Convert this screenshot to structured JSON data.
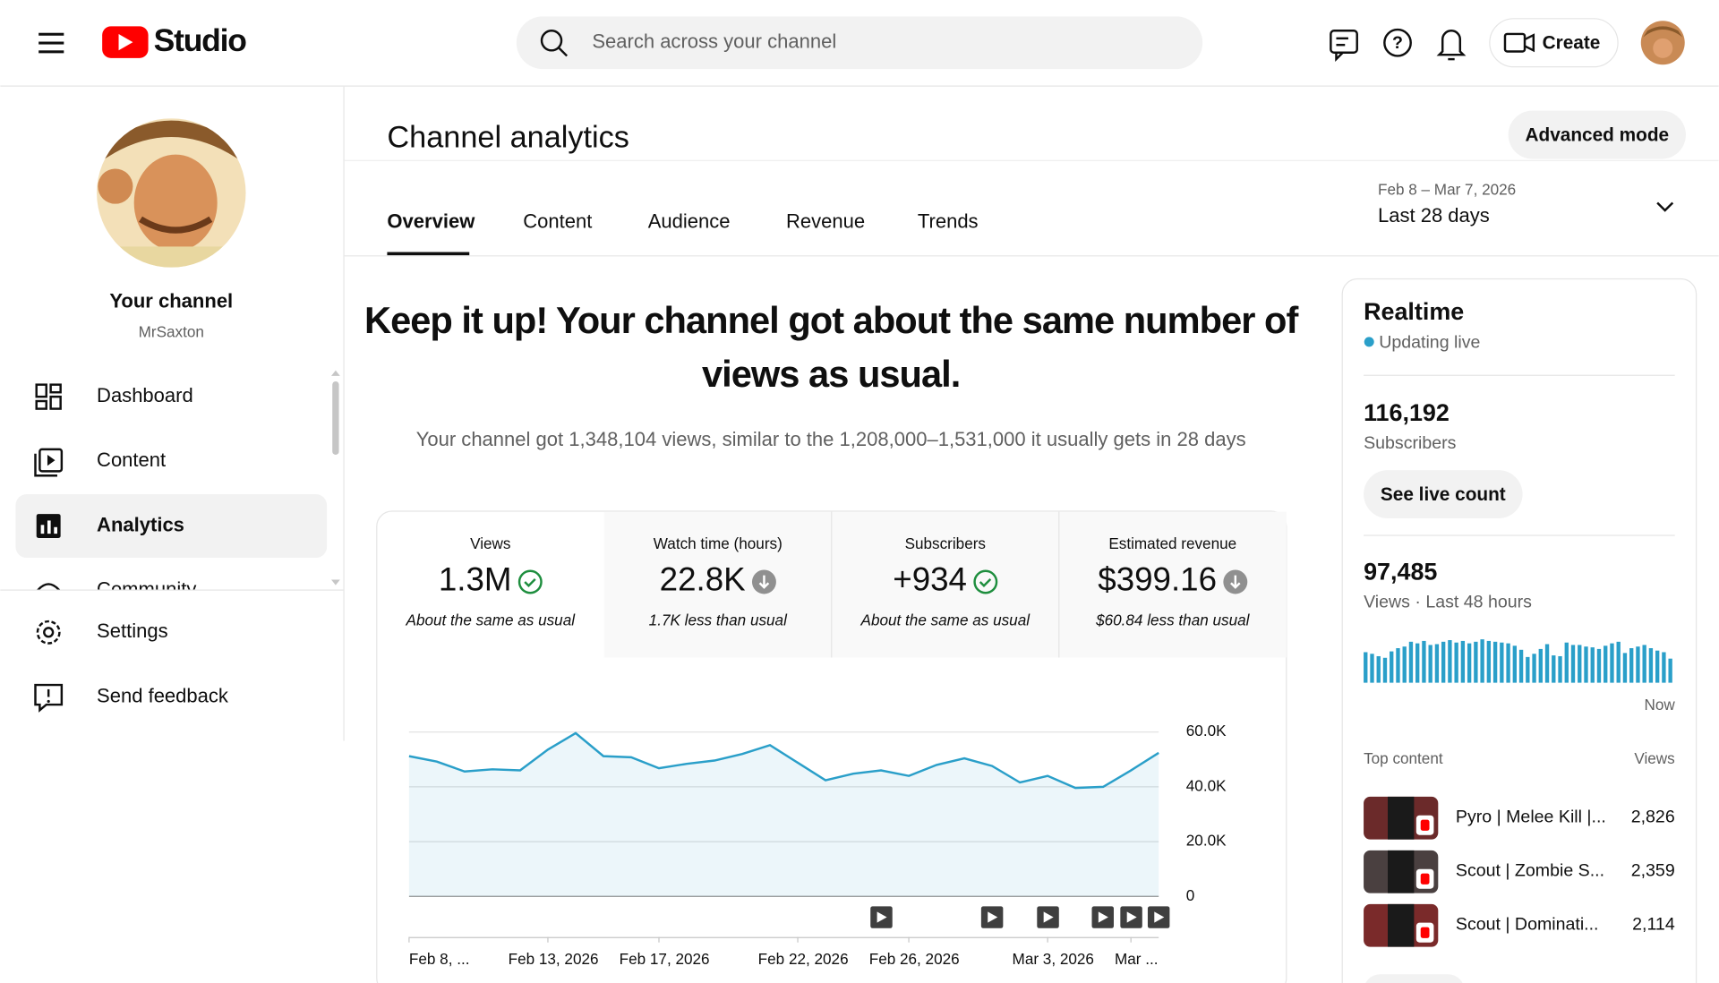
{
  "header": {
    "logo": "Studio",
    "search_placeholder": "Search across your channel",
    "create": "Create"
  },
  "sidebar": {
    "channel_title": "Your channel",
    "channel_name": "MrSaxton",
    "nav": [
      "Dashboard",
      "Content",
      "Analytics",
      "Community",
      "Settings",
      "Send feedback"
    ]
  },
  "page": {
    "title": "Channel analytics",
    "advanced_mode": "Advanced mode",
    "tabs": [
      "Overview",
      "Content",
      "Audience",
      "Revenue",
      "Trends"
    ],
    "date_range": "Feb 8 – Mar 7, 2026",
    "period": "Last 28 days",
    "headline": [
      "Keep it up! Your channel got about the same number of",
      "views as usual."
    ],
    "summary": "Your channel got 1,348,104 views, similar to the 1,208,000–1,531,000 it usually gets in 28 days"
  },
  "metrics": [
    {
      "label": "Views",
      "value": "1.3M",
      "note": "About the same as usual"
    },
    {
      "label": "Watch time (hours)",
      "value": "22.8K",
      "note": "1.7K less than usual"
    },
    {
      "label": "Subscribers",
      "value": "+934",
      "note": "About the same as usual"
    },
    {
      "label": "Estimated revenue",
      "value": "$399.16",
      "note": "$60.84 less than usual"
    }
  ],
  "chart_data": [
    {
      "type": "line",
      "color": "#2a9fc9",
      "categories": [
        "Feb 8, ...",
        null,
        null,
        null,
        null,
        "Feb 13, 2026",
        null,
        null,
        null,
        "Feb 17, 2026",
        null,
        null,
        null,
        null,
        "Feb 22, 2026",
        null,
        null,
        null,
        "Feb 26, 2026",
        null,
        null,
        null,
        null,
        "Mar 3, 2026",
        null,
        null,
        "Mar ...",
        null
      ],
      "values": [
        51200,
        49200,
        45600,
        46400,
        46000,
        53600,
        59600,
        51200,
        50800,
        46800,
        48400,
        49600,
        52000,
        55200,
        48800,
        42400,
        44800,
        46000,
        44000,
        48000,
        50400,
        47600,
        41600,
        44000,
        39600,
        40000,
        46000,
        52400
      ],
      "ylim": [
        0,
        60000
      ],
      "yticks": [
        {
          "value": 0,
          "label": "0"
        },
        {
          "value": 20000,
          "label": "20.0K"
        },
        {
          "value": 40000,
          "label": "40.0K"
        },
        {
          "value": 60000,
          "label": "60.0K"
        }
      ],
      "grid": true
    },
    {
      "type": "bar",
      "color": "#2a9fc9",
      "ylim": [
        0,
        3000
      ],
      "values": [
        1900,
        1800,
        1650,
        1550,
        1950,
        2150,
        2250,
        2550,
        2450,
        2600,
        2350,
        2400,
        2550,
        2650,
        2500,
        2600,
        2450,
        2550,
        2700,
        2600,
        2550,
        2500,
        2450,
        2300,
        2050,
        1600,
        1800,
        2100,
        2400,
        1700,
        1650,
        2500,
        2350,
        2350,
        2250,
        2200,
        2100,
        2300,
        2450,
        2550,
        1850,
        2150,
        2250,
        2350,
        2150,
        2000,
        1900,
        1500
      ]
    }
  ],
  "realtime": {
    "title": "Realtime",
    "status": "Updating live",
    "subscribers": "116,192",
    "subscribers_label": "Subscribers",
    "see_live": "See live count",
    "views": "97,485",
    "views_label": "Views · Last 48 hours",
    "now": "Now",
    "top_content_label": "Top content",
    "views_col": "Views",
    "top_content": [
      {
        "title": "Pyro | Melee Kill |...",
        "views": "2,826"
      },
      {
        "title": "Scout | Zombie S...",
        "views": "2,359"
      },
      {
        "title": "Scout | Dominati...",
        "views": "2,114"
      }
    ]
  }
}
